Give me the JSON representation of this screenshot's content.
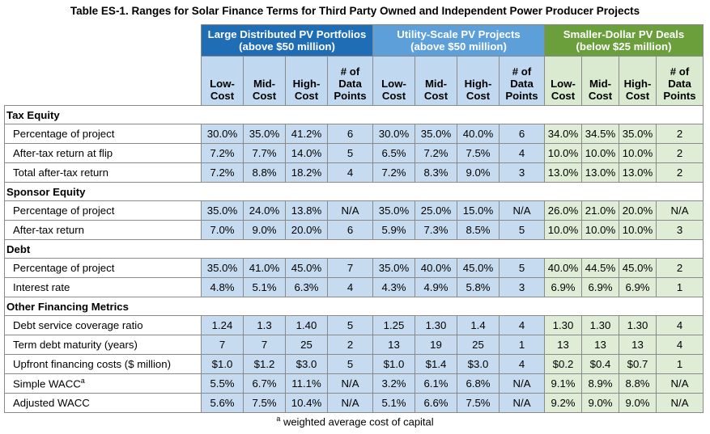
{
  "title": "Table ES-1. Ranges for Solar Finance Terms for Third Party Owned and Independent Power Producer Projects",
  "groups": [
    {
      "name": "Large Distributed PV Portfolios",
      "sub": "(above $50 million)"
    },
    {
      "name": "Utility-Scale PV Projects",
      "sub": "(above $50 million)"
    },
    {
      "name": "Smaller-Dollar PV Deals",
      "sub": "(below $25 million)"
    }
  ],
  "columns": {
    "low": [
      "Low-",
      "Cost"
    ],
    "mid": [
      "Mid-",
      "Cost"
    ],
    "high": [
      "High-",
      "Cost"
    ],
    "points": [
      "# of",
      "Data",
      "Points"
    ]
  },
  "sections": [
    {
      "name": "Tax Equity",
      "rows": [
        {
          "label": "Percentage of project",
          "sup": "",
          "values": [
            "30.0%",
            "35.0%",
            "41.2%",
            "6",
            "30.0%",
            "35.0%",
            "40.0%",
            "6",
            "34.0%",
            "34.5%",
            "35.0%",
            "2"
          ]
        },
        {
          "label": "After-tax return at flip",
          "sup": "",
          "values": [
            "7.2%",
            "7.7%",
            "14.0%",
            "5",
            "6.5%",
            "7.2%",
            "7.5%",
            "4",
            "10.0%",
            "10.0%",
            "10.0%",
            "2"
          ]
        },
        {
          "label": "Total after-tax return",
          "sup": "",
          "values": [
            "7.2%",
            "8.8%",
            "18.2%",
            "4",
            "7.2%",
            "8.3%",
            "9.0%",
            "3",
            "13.0%",
            "13.0%",
            "13.0%",
            "2"
          ]
        }
      ]
    },
    {
      "name": "Sponsor Equity",
      "rows": [
        {
          "label": "Percentage of project",
          "sup": "",
          "values": [
            "35.0%",
            "24.0%",
            "13.8%",
            "N/A",
            "35.0%",
            "25.0%",
            "15.0%",
            "N/A",
            "26.0%",
            "21.0%",
            "20.0%",
            "N/A"
          ]
        },
        {
          "label": "After-tax return",
          "sup": "",
          "values": [
            "7.0%",
            "9.0%",
            "20.0%",
            "6",
            "5.9%",
            "7.3%",
            "8.5%",
            "5",
            "10.0%",
            "10.0%",
            "10.0%",
            "3"
          ]
        }
      ]
    },
    {
      "name": "Debt",
      "rows": [
        {
          "label": "Percentage of project",
          "sup": "",
          "values": [
            "35.0%",
            "41.0%",
            "45.0%",
            "7",
            "35.0%",
            "40.0%",
            "45.0%",
            "5",
            "40.0%",
            "44.5%",
            "45.0%",
            "2"
          ]
        },
        {
          "label": "Interest rate",
          "sup": "",
          "values": [
            "4.8%",
            "5.1%",
            "6.3%",
            "4",
            "4.3%",
            "4.9%",
            "5.8%",
            "3",
            "6.9%",
            "6.9%",
            "6.9%",
            "1"
          ]
        }
      ]
    },
    {
      "name": "Other Financing Metrics",
      "rows": [
        {
          "label": "Debt service coverage ratio",
          "sup": "",
          "values": [
            "1.24",
            "1.3",
            "1.40",
            "5",
            "1.25",
            "1.30",
            "1.4",
            "4",
            "1.30",
            "1.30",
            "1.30",
            "4"
          ]
        },
        {
          "label": "Term debt maturity (years)",
          "sup": "",
          "values": [
            "7",
            "7",
            "25",
            "2",
            "13",
            "19",
            "25",
            "1",
            "13",
            "13",
            "13",
            "4"
          ]
        },
        {
          "label": "Upfront financing costs ($ million)",
          "sup": "",
          "values": [
            "$1.0",
            "$1.2",
            "$3.0",
            "5",
            "$1.0",
            "$1.4",
            "$3.0",
            "4",
            "$0.2",
            "$0.4",
            "$0.7",
            "1"
          ]
        },
        {
          "label": "Simple WACC",
          "sup": "a",
          "values": [
            "5.5%",
            "6.7%",
            "11.1%",
            "N/A",
            "3.2%",
            "6.1%",
            "6.8%",
            "N/A",
            "9.1%",
            "8.9%",
            "8.8%",
            "N/A"
          ]
        },
        {
          "label": "Adjusted WACC",
          "sup": "",
          "values": [
            "5.6%",
            "7.5%",
            "10.4%",
            "N/A",
            "5.1%",
            "6.6%",
            "7.5%",
            "N/A",
            "9.2%",
            "9.0%",
            "9.0%",
            "N/A"
          ]
        }
      ]
    }
  ],
  "footnote": {
    "sup": "a",
    "text": " weighted average cost of capital"
  },
  "colors": {
    "group1": "#1f6db5",
    "group2": "#5d9fd8",
    "group3": "#6b9f3c",
    "cell_blue": "#c6dbf0",
    "cell_green": "#e0edd6"
  }
}
